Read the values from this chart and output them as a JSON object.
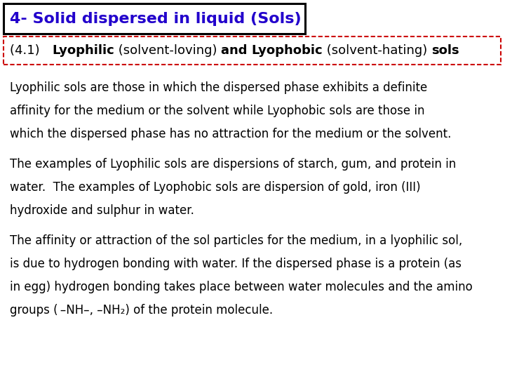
{
  "title": "4- Solid dispersed in liquid (Sols)",
  "title_color": "#2200CC",
  "title_bg": "#ffffff",
  "title_border": "#000000",
  "subtitle_border": "#CC0000",
  "bg_color": "#ffffff",
  "body_color": "#000000",
  "title_fontsize": 16,
  "subtitle_fontsize": 13,
  "body_fontsize": 12,
  "subtitle_parts": [
    [
      "(4.1)   ",
      false
    ],
    [
      "Lyophilic",
      true
    ],
    [
      " (solvent-loving) ",
      false
    ],
    [
      "and ",
      true
    ],
    [
      "Lyophobic",
      true
    ],
    [
      " (solvent-hating) ",
      false
    ],
    [
      "sols",
      true
    ]
  ],
  "para1": [
    "Lyophilic sols are those in which the dispersed phase exhibits a definite",
    "affinity for the medium or the solvent while Lyophobic sols are those in",
    "which the dispersed phase has no attraction for the medium or the solvent."
  ],
  "para2": [
    "The examples of Lyophilic sols are dispersions of starch, gum, and protein in",
    "water.  The examples of Lyophobic sols are dispersion of gold, iron (III)",
    "hydroxide and sulphur in water."
  ],
  "para3": [
    "The affinity or attraction of the sol particles for the medium, in a lyophilic sol,",
    "is due to hydrogen bonding with water. If the dispersed phase is a protein (as",
    "in egg) hydrogen bonding takes place between water molecules and the amino",
    "groups ( –NH–, –NH₂) of the protein molecule."
  ]
}
